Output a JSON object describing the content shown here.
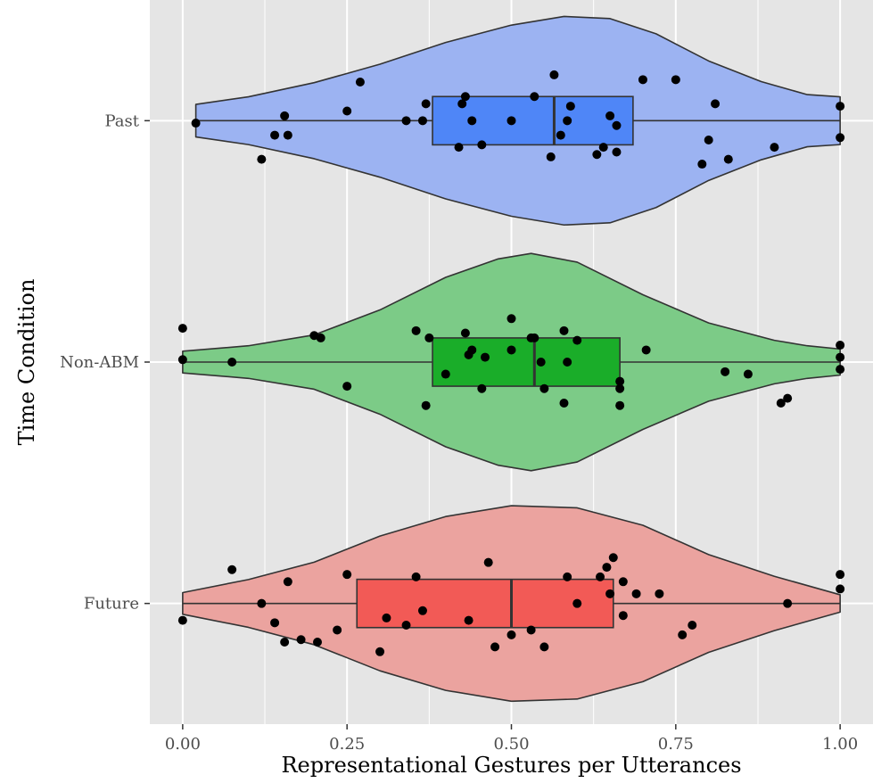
{
  "chart_data": {
    "type": "violin",
    "xlabel": "Representational Gestures per Utterances",
    "ylabel": "Time Condition",
    "xlim": [
      -0.05,
      1.05
    ],
    "x_ticks": [
      "0.00",
      "0.25",
      "0.50",
      "0.75",
      "1.00"
    ],
    "x_tick_values": [
      0,
      0.25,
      0.5,
      0.75,
      1.0
    ],
    "grid": true,
    "legend": "none",
    "background_color": "#e5e5e5",
    "grid_color": "#ffffff",
    "categories": [
      "Past",
      "Non-ABM",
      "Future"
    ],
    "series": [
      {
        "name": "Past",
        "fill": "#9cb3f2",
        "box_fill": "#4f86f7",
        "box": {
          "min": 0.02,
          "q1": 0.38,
          "median": 0.565,
          "q3": 0.685,
          "max": 1.0
        },
        "density": [
          [
            0.02,
            0.15
          ],
          [
            0.1,
            0.22
          ],
          [
            0.2,
            0.35
          ],
          [
            0.3,
            0.52
          ],
          [
            0.4,
            0.72
          ],
          [
            0.5,
            0.88
          ],
          [
            0.58,
            0.96
          ],
          [
            0.65,
            0.94
          ],
          [
            0.72,
            0.8
          ],
          [
            0.8,
            0.55
          ],
          [
            0.88,
            0.36
          ],
          [
            0.95,
            0.24
          ],
          [
            1.0,
            0.22
          ]
        ],
        "points": [
          [
            0.12,
            0.16
          ],
          [
            0.14,
            0.06
          ],
          [
            0.155,
            -0.02
          ],
          [
            0.16,
            0.06
          ],
          [
            0.02,
            0.01
          ],
          [
            0.25,
            -0.04
          ],
          [
            0.27,
            -0.16
          ],
          [
            0.34,
            0.0
          ],
          [
            0.365,
            0.0
          ],
          [
            0.37,
            -0.07
          ],
          [
            0.42,
            0.11
          ],
          [
            0.425,
            -0.07
          ],
          [
            0.43,
            -0.1
          ],
          [
            0.455,
            0.1
          ],
          [
            0.44,
            0.0
          ],
          [
            0.5,
            0.0
          ],
          [
            0.535,
            -0.1
          ],
          [
            0.56,
            0.15
          ],
          [
            0.565,
            -0.19
          ],
          [
            0.575,
            0.06
          ],
          [
            0.585,
            0.0
          ],
          [
            0.59,
            -0.06
          ],
          [
            0.63,
            0.14
          ],
          [
            0.64,
            0.11
          ],
          [
            0.65,
            -0.02
          ],
          [
            0.66,
            0.13
          ],
          [
            0.66,
            0.02
          ],
          [
            0.7,
            -0.17
          ],
          [
            0.75,
            -0.17
          ],
          [
            0.79,
            0.18
          ],
          [
            0.8,
            0.08
          ],
          [
            0.81,
            -0.07
          ],
          [
            0.83,
            0.16
          ],
          [
            0.9,
            0.11
          ],
          [
            1.0,
            0.07
          ],
          [
            1.0,
            -0.06
          ]
        ]
      },
      {
        "name": "Non-ABM",
        "fill": "#7ccb87",
        "box_fill": "#1aad29",
        "box": {
          "min": 0.0,
          "q1": 0.38,
          "median": 0.535,
          "q3": 0.665,
          "max": 1.0
        },
        "density": [
          [
            0.0,
            0.1
          ],
          [
            0.1,
            0.15
          ],
          [
            0.2,
            0.25
          ],
          [
            0.3,
            0.48
          ],
          [
            0.4,
            0.78
          ],
          [
            0.48,
            0.95
          ],
          [
            0.53,
            1.0
          ],
          [
            0.6,
            0.92
          ],
          [
            0.7,
            0.62
          ],
          [
            0.8,
            0.36
          ],
          [
            0.9,
            0.2
          ],
          [
            0.95,
            0.15
          ],
          [
            1.0,
            0.12
          ]
        ],
        "points": [
          [
            0.0,
            -0.01
          ],
          [
            0.0,
            -0.14
          ],
          [
            0.075,
            0.0
          ],
          [
            0.2,
            -0.11
          ],
          [
            0.21,
            -0.1
          ],
          [
            0.25,
            0.1
          ],
          [
            0.355,
            -0.13
          ],
          [
            0.37,
            0.18
          ],
          [
            0.375,
            -0.1
          ],
          [
            0.4,
            0.05
          ],
          [
            0.43,
            -0.12
          ],
          [
            0.435,
            -0.03
          ],
          [
            0.44,
            -0.05
          ],
          [
            0.455,
            0.11
          ],
          [
            0.46,
            -0.02
          ],
          [
            0.5,
            -0.18
          ],
          [
            0.5,
            -0.05
          ],
          [
            0.53,
            -0.1
          ],
          [
            0.535,
            -0.1
          ],
          [
            0.55,
            0.11
          ],
          [
            0.545,
            0.0
          ],
          [
            0.58,
            0.17
          ],
          [
            0.585,
            0.0
          ],
          [
            0.58,
            -0.13
          ],
          [
            0.6,
            -0.09
          ],
          [
            0.665,
            0.18
          ],
          [
            0.665,
            0.11
          ],
          [
            0.665,
            0.08
          ],
          [
            0.705,
            -0.05
          ],
          [
            0.825,
            0.04
          ],
          [
            0.86,
            0.05
          ],
          [
            0.91,
            0.17
          ],
          [
            0.92,
            0.15
          ],
          [
            1.0,
            0.03
          ],
          [
            1.0,
            -0.02
          ],
          [
            1.0,
            -0.07
          ]
        ]
      },
      {
        "name": "Future",
        "fill": "#eba39f",
        "box_fill": "#f25a56",
        "box": {
          "min": 0.0,
          "q1": 0.265,
          "median": 0.5,
          "q3": 0.655,
          "max": 1.0
        },
        "density": [
          [
            0.0,
            0.1
          ],
          [
            0.1,
            0.22
          ],
          [
            0.2,
            0.38
          ],
          [
            0.3,
            0.62
          ],
          [
            0.4,
            0.8
          ],
          [
            0.5,
            0.9
          ],
          [
            0.6,
            0.88
          ],
          [
            0.7,
            0.72
          ],
          [
            0.8,
            0.45
          ],
          [
            0.9,
            0.25
          ],
          [
            1.0,
            0.08
          ]
        ],
        "points": [
          [
            0.0,
            0.07
          ],
          [
            0.075,
            -0.14
          ],
          [
            0.12,
            0.0
          ],
          [
            0.14,
            0.08
          ],
          [
            0.155,
            0.16
          ],
          [
            0.16,
            -0.09
          ],
          [
            0.18,
            0.15
          ],
          [
            0.205,
            0.16
          ],
          [
            0.235,
            0.11
          ],
          [
            0.25,
            -0.12
          ],
          [
            0.3,
            0.2
          ],
          [
            0.31,
            0.06
          ],
          [
            0.34,
            0.09
          ],
          [
            0.355,
            -0.11
          ],
          [
            0.365,
            0.03
          ],
          [
            0.435,
            0.07
          ],
          [
            0.465,
            -0.17
          ],
          [
            0.475,
            0.18
          ],
          [
            0.5,
            0.13
          ],
          [
            0.53,
            0.11
          ],
          [
            0.55,
            0.18
          ],
          [
            0.585,
            -0.11
          ],
          [
            0.6,
            0.0
          ],
          [
            0.635,
            -0.11
          ],
          [
            0.645,
            -0.15
          ],
          [
            0.65,
            -0.04
          ],
          [
            0.655,
            -0.19
          ],
          [
            0.67,
            0.05
          ],
          [
            0.67,
            -0.09
          ],
          [
            0.69,
            -0.04
          ],
          [
            0.725,
            -0.04
          ],
          [
            0.76,
            0.13
          ],
          [
            0.775,
            0.09
          ],
          [
            0.92,
            0.0
          ],
          [
            1.0,
            -0.06
          ],
          [
            1.0,
            -0.12
          ]
        ]
      }
    ]
  }
}
